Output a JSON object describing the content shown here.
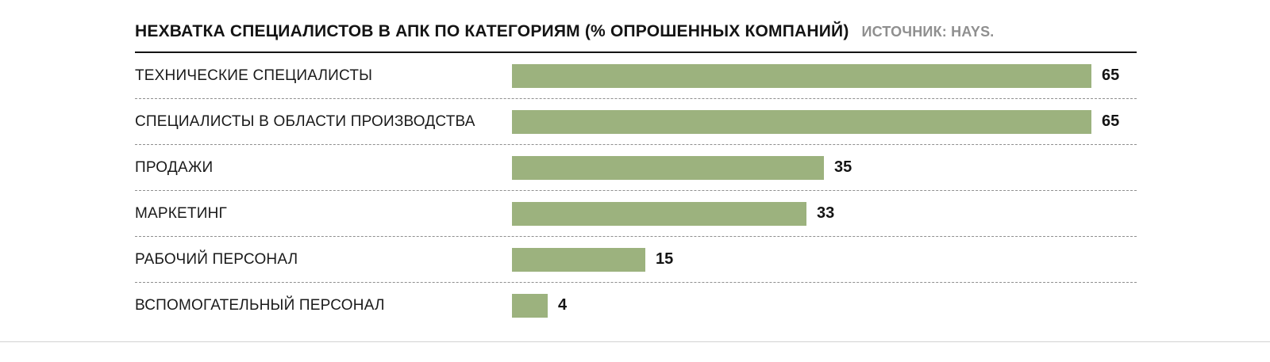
{
  "chart_data": {
    "type": "bar",
    "orientation": "horizontal",
    "title": "НЕХВАТКА СПЕЦИАЛИСТОВ В АПК ПО КАТЕГОРИЯМ (% ОПРОШЕННЫХ КОМПАНИЙ)",
    "source": "ИСТОЧНИК: HAYS.",
    "categories": [
      "ТЕХНИЧЕСКИЕ СПЕЦИАЛИСТЫ",
      "СПЕЦИАЛИСТЫ В ОБЛАСТИ ПРОИЗВОДСТВА",
      "ПРОДАЖИ",
      "МАРКЕТИНГ",
      "РАБОЧИЙ ПЕРСОНАЛ",
      "ВСПОМОГАТЕЛЬНЫЙ ПЕРСОНАЛ"
    ],
    "values": [
      65,
      65,
      35,
      33,
      15,
      4
    ],
    "unit": "%",
    "xlim": [
      0,
      65
    ],
    "bar_color": "#9cb27e",
    "value_labels_shown": true,
    "grid": false,
    "legend": false,
    "row_separator_style": "dashed"
  }
}
